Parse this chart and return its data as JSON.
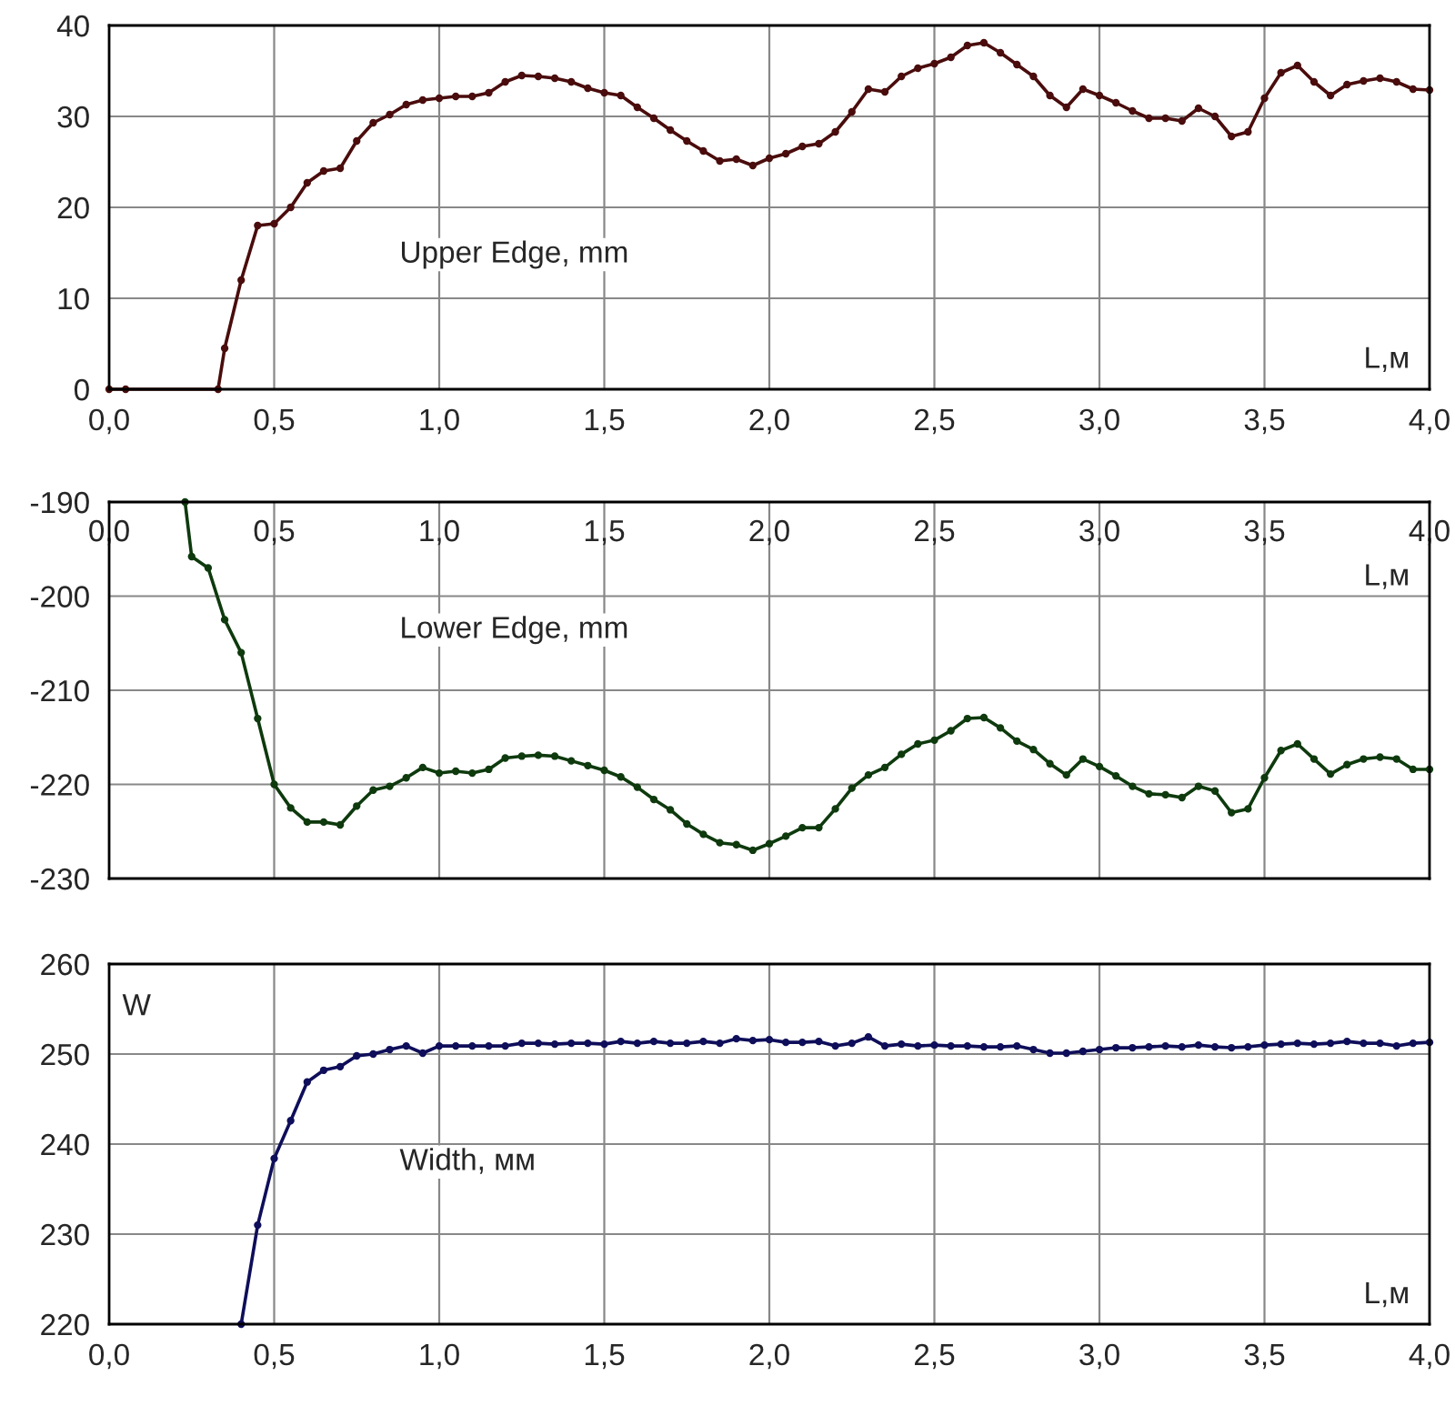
{
  "chart_data": [
    {
      "type": "line",
      "xlabel": "L,м",
      "annotations": [
        "Upper Edge, mm"
      ],
      "grid": true,
      "marker": "circle",
      "line_style": "solid",
      "xlim": [
        0,
        4
      ],
      "ylim": [
        0,
        40
      ],
      "yticks": [
        0,
        10,
        20,
        30,
        40
      ],
      "xticks": [
        {
          "value": 0,
          "label": "0,0"
        },
        {
          "value": 0.5,
          "label": "0,5"
        },
        {
          "value": 1,
          "label": "1,0"
        },
        {
          "value": 1.5,
          "label": "1,5"
        },
        {
          "value": 2,
          "label": "2,0"
        },
        {
          "value": 2.5,
          "label": "2,5"
        },
        {
          "value": 3,
          "label": "3,0"
        },
        {
          "value": 3.5,
          "label": "3,5"
        },
        {
          "value": 4,
          "label": "4,0"
        }
      ],
      "series": [
        {
          "color": "#4a0c0c",
          "x": [
            0,
            0.05,
            0.33,
            0.35,
            0.4,
            0.45,
            0.5,
            0.55,
            0.6,
            0.65,
            0.7,
            0.75,
            0.8,
            0.85,
            0.9,
            0.95,
            1.0,
            1.05,
            1.1,
            1.15,
            1.2,
            1.25,
            1.3,
            1.35,
            1.4,
            1.45,
            1.5,
            1.55,
            1.6,
            1.65,
            1.7,
            1.75,
            1.8,
            1.85,
            1.9,
            1.95,
            2.0,
            2.05,
            2.1,
            2.15,
            2.2,
            2.25,
            2.3,
            2.35,
            2.4,
            2.45,
            2.5,
            2.55,
            2.6,
            2.65,
            2.7,
            2.75,
            2.8,
            2.85,
            2.9,
            2.95,
            3.0,
            3.05,
            3.1,
            3.15,
            3.2,
            3.25,
            3.3,
            3.35,
            3.4,
            3.45,
            3.5,
            3.55,
            3.6,
            3.65,
            3.7,
            3.75,
            3.8,
            3.85,
            3.9,
            3.95,
            4.0
          ],
          "values": [
            0,
            0,
            0,
            4.5,
            12,
            18,
            18.2,
            20,
            22.7,
            24,
            24.3,
            27.3,
            29.3,
            30.2,
            31.3,
            31.8,
            32,
            32.2,
            32.2,
            32.6,
            33.8,
            34.5,
            34.4,
            34.2,
            33.8,
            33.1,
            32.6,
            32.3,
            31,
            29.8,
            28.5,
            27.3,
            26.2,
            25.1,
            25.3,
            24.6,
            25.4,
            25.9,
            26.7,
            27,
            28.3,
            30.5,
            33,
            32.7,
            34.4,
            35.3,
            35.8,
            36.5,
            37.8,
            38.1,
            37,
            35.7,
            34.4,
            32.3,
            31,
            33,
            32.3,
            31.5,
            30.6,
            29.8,
            29.8,
            29.5,
            30.9,
            30,
            27.8,
            28.3,
            32,
            34.8,
            35.6,
            33.8,
            32.3,
            33.5,
            33.9,
            34.2,
            33.8,
            33,
            32.9
          ]
        }
      ]
    },
    {
      "type": "line",
      "xlabel": "L,м",
      "annotations": [
        "Lower Edge, mm"
      ],
      "grid": true,
      "marker": "circle",
      "line_style": "solid",
      "xlim": [
        0,
        4
      ],
      "ylim": [
        -230,
        -190
      ],
      "yticks": [
        -230,
        -220,
        -210,
        -200,
        -190
      ],
      "xticks": [
        {
          "value": 0,
          "label": "0,0"
        },
        {
          "value": 0.5,
          "label": "0,5"
        },
        {
          "value": 1,
          "label": "1,0"
        },
        {
          "value": 1.5,
          "label": "1,5"
        },
        {
          "value": 2,
          "label": "2,0"
        },
        {
          "value": 2.5,
          "label": "2,5"
        },
        {
          "value": 3,
          "label": "3,0"
        },
        {
          "value": 3.5,
          "label": "3,5"
        },
        {
          "value": 4,
          "label": "4,0"
        }
      ],
      "series": [
        {
          "color": "#0e3a0e",
          "x": [
            0.23,
            0.25,
            0.3,
            0.35,
            0.4,
            0.45,
            0.5,
            0.55,
            0.6,
            0.65,
            0.7,
            0.75,
            0.8,
            0.85,
            0.9,
            0.95,
            1.0,
            1.05,
            1.1,
            1.15,
            1.2,
            1.25,
            1.3,
            1.35,
            1.4,
            1.45,
            1.5,
            1.55,
            1.6,
            1.65,
            1.7,
            1.75,
            1.8,
            1.85,
            1.9,
            1.95,
            2.0,
            2.05,
            2.1,
            2.15,
            2.2,
            2.25,
            2.3,
            2.35,
            2.4,
            2.45,
            2.5,
            2.55,
            2.6,
            2.65,
            2.7,
            2.75,
            2.8,
            2.85,
            2.9,
            2.95,
            3.0,
            3.05,
            3.1,
            3.15,
            3.2,
            3.25,
            3.3,
            3.35,
            3.4,
            3.45,
            3.5,
            3.55,
            3.6,
            3.65,
            3.7,
            3.75,
            3.8,
            3.85,
            3.9,
            3.95,
            4.0
          ],
          "values": [
            -190,
            -195.8,
            -197,
            -202.5,
            -206,
            -213,
            -220,
            -222.5,
            -224,
            -224,
            -224.3,
            -222.3,
            -220.6,
            -220.2,
            -219.3,
            -218.2,
            -218.8,
            -218.6,
            -218.8,
            -218.4,
            -217.2,
            -217,
            -216.9,
            -217,
            -217.5,
            -218,
            -218.5,
            -219.2,
            -220.3,
            -221.6,
            -222.7,
            -224.2,
            -225.3,
            -226.2,
            -226.4,
            -227,
            -226.3,
            -225.5,
            -224.6,
            -224.6,
            -222.6,
            -220.4,
            -219,
            -218.2,
            -216.8,
            -215.7,
            -215.3,
            -214.3,
            -213,
            -212.9,
            -214,
            -215.4,
            -216.3,
            -217.8,
            -219,
            -217.3,
            -218.1,
            -219.1,
            -220.2,
            -221,
            -221.1,
            -221.4,
            -220.2,
            -220.7,
            -223,
            -222.6,
            -219.3,
            -216.4,
            -215.7,
            -217.3,
            -218.9,
            -217.9,
            -217.3,
            -217.1,
            -217.3,
            -218.4,
            -218.4
          ]
        }
      ]
    },
    {
      "type": "line",
      "xlabel": "L,м",
      "ylabel": "W",
      "annotations": [
        "Width, мм"
      ],
      "grid": true,
      "marker": "circle",
      "line_style": "solid",
      "xlim": [
        0,
        4
      ],
      "ylim": [
        220,
        260
      ],
      "yticks": [
        220,
        230,
        240,
        250,
        260
      ],
      "xticks": [
        {
          "value": 0,
          "label": "0,0"
        },
        {
          "value": 0.5,
          "label": "0,5"
        },
        {
          "value": 1,
          "label": "1,0"
        },
        {
          "value": 1.5,
          "label": "1,5"
        },
        {
          "value": 2,
          "label": "2,0"
        },
        {
          "value": 2.5,
          "label": "2,5"
        },
        {
          "value": 3,
          "label": "3,0"
        },
        {
          "value": 3.5,
          "label": "3,5"
        },
        {
          "value": 4,
          "label": "4,0"
        }
      ],
      "series": [
        {
          "color": "#0e0e5a",
          "x": [
            0.4,
            0.45,
            0.5,
            0.55,
            0.6,
            0.65,
            0.7,
            0.75,
            0.8,
            0.85,
            0.9,
            0.95,
            1.0,
            1.05,
            1.1,
            1.15,
            1.2,
            1.25,
            1.3,
            1.35,
            1.4,
            1.45,
            1.5,
            1.55,
            1.6,
            1.65,
            1.7,
            1.75,
            1.8,
            1.85,
            1.9,
            1.95,
            2.0,
            2.05,
            2.1,
            2.15,
            2.2,
            2.25,
            2.3,
            2.35,
            2.4,
            2.45,
            2.5,
            2.55,
            2.6,
            2.65,
            2.7,
            2.75,
            2.8,
            2.85,
            2.9,
            2.95,
            3.0,
            3.05,
            3.1,
            3.15,
            3.2,
            3.25,
            3.3,
            3.35,
            3.4,
            3.45,
            3.5,
            3.55,
            3.6,
            3.65,
            3.7,
            3.75,
            3.8,
            3.85,
            3.9,
            3.95,
            4.0
          ],
          "values": [
            220,
            231,
            238.4,
            242.6,
            246.9,
            248.2,
            248.6,
            249.8,
            250,
            250.5,
            250.9,
            250.1,
            250.9,
            250.9,
            250.9,
            250.9,
            250.9,
            251.2,
            251.2,
            251.1,
            251.2,
            251.2,
            251.1,
            251.4,
            251.2,
            251.4,
            251.2,
            251.2,
            251.4,
            251.2,
            251.7,
            251.5,
            251.6,
            251.3,
            251.3,
            251.4,
            250.9,
            251.2,
            251.9,
            250.9,
            251.1,
            250.9,
            251,
            250.9,
            250.9,
            250.8,
            250.8,
            250.9,
            250.5,
            250.1,
            250.1,
            250.3,
            250.5,
            250.7,
            250.7,
            250.8,
            250.9,
            250.8,
            251,
            250.8,
            250.7,
            250.8,
            251,
            251.1,
            251.2,
            251.1,
            251.2,
            251.4,
            251.2,
            251.2,
            250.9,
            251.2,
            251.3
          ]
        }
      ]
    }
  ]
}
